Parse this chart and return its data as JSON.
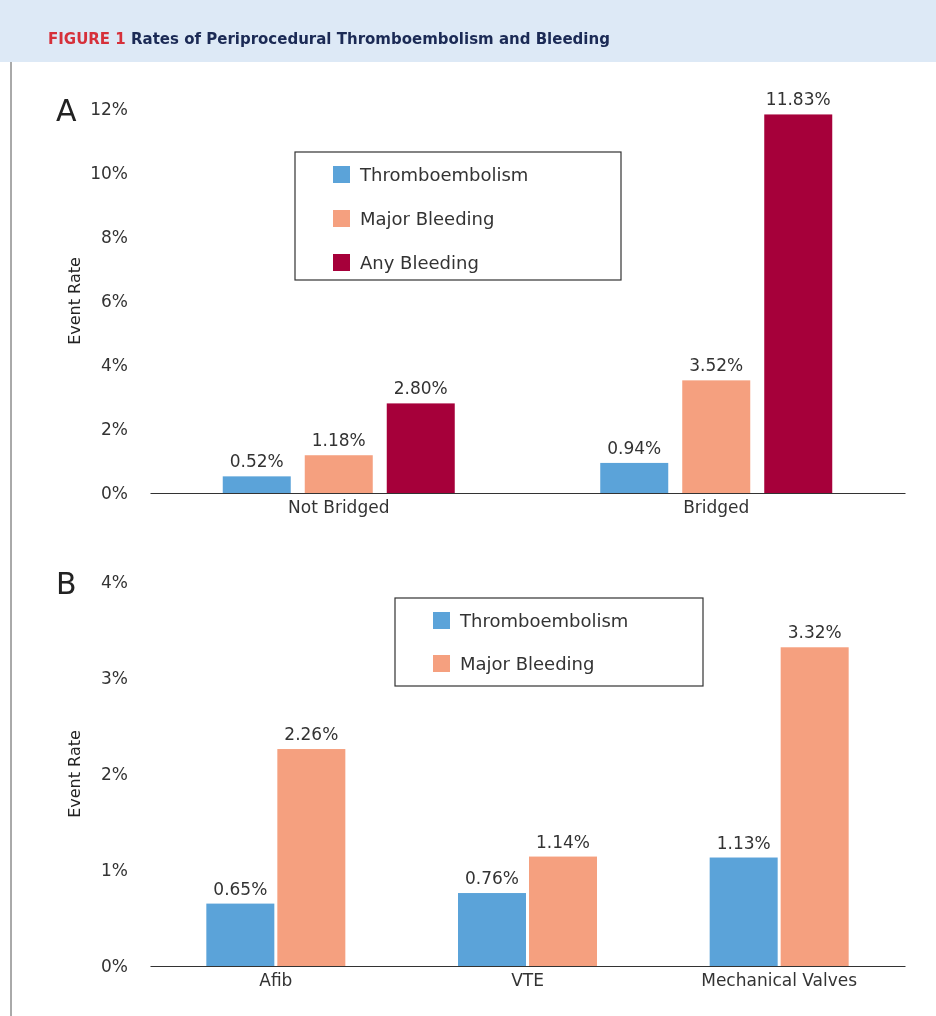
{
  "chart_data": [
    {
      "type": "bar",
      "title": "FIGURE 1 Rates of Periprocedural Thromboembolism and Bleeding",
      "subtitle": "A",
      "ylabel": "Event Rate",
      "categories": [
        "Not Bridged",
        "Bridged"
      ],
      "series": [
        {
          "name": "Thromboembolism",
          "color": "#5ba3d9",
          "values": [
            0.52,
            0.94
          ],
          "value_labels": [
            "0.52%",
            "0.94%"
          ]
        },
        {
          "name": "Major Bleeding",
          "color": "#f5a07f",
          "values": [
            1.18,
            3.52
          ],
          "value_labels": [
            "1.18%",
            "3.52%"
          ]
        },
        {
          "name": "Any Bleeding",
          "color": "#a6003a",
          "values": [
            2.8,
            11.83
          ],
          "value_labels": [
            "2.80%",
            "11.83%"
          ]
        }
      ],
      "ylim": [
        0,
        12
      ],
      "yticks": [
        {
          "value": 0,
          "label": "0%"
        },
        {
          "value": 2,
          "label": "2%"
        },
        {
          "value": 4,
          "label": "4%"
        },
        {
          "value": 6,
          "label": "6%"
        },
        {
          "value": 8,
          "label": "8%"
        },
        {
          "value": 10,
          "label": "10%"
        },
        {
          "value": 12,
          "label": "12%"
        }
      ],
      "grid": false,
      "legend": "top"
    },
    {
      "type": "bar",
      "subtitle": "B",
      "ylabel": "Event Rate",
      "categories": [
        "Afib",
        "VTE",
        "Mechanical Valves"
      ],
      "series": [
        {
          "name": "Thromboembolism",
          "color": "#5ba3d9",
          "values": [
            0.65,
            0.76,
            1.13
          ],
          "value_labels": [
            "0.65%",
            "0.76%",
            "1.13%"
          ]
        },
        {
          "name": "Major Bleeding",
          "color": "#f5a07f",
          "values": [
            2.26,
            1.14,
            3.32
          ],
          "value_labels": [
            "2.26%",
            "1.14%",
            "3.32%"
          ]
        }
      ],
      "ylim": [
        0,
        4
      ],
      "yticks": [
        {
          "value": 0,
          "label": "0%"
        },
        {
          "value": 1,
          "label": "1%"
        },
        {
          "value": 2,
          "label": "2%"
        },
        {
          "value": 3,
          "label": "3%"
        },
        {
          "value": 4,
          "label": "4%"
        }
      ],
      "grid": false,
      "legend": "top"
    }
  ]
}
